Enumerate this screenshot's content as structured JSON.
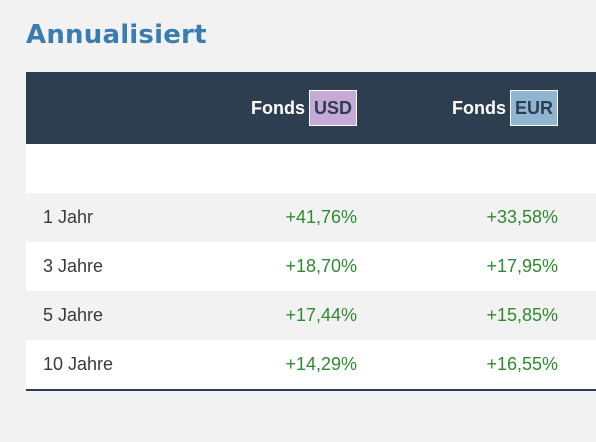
{
  "title": "Annualisiert",
  "header": {
    "col_usd_label": "Fonds",
    "col_usd_currency": "USD",
    "col_eur_label": "Fonds",
    "col_eur_currency": "EUR"
  },
  "rows": [
    {
      "period": "1 Jahr",
      "usd": "+41,76%",
      "eur": "+33,58%"
    },
    {
      "period": "3 Jahre",
      "usd": "+18,70%",
      "eur": "+17,95%"
    },
    {
      "period": "5 Jahre",
      "usd": "+17,44%",
      "eur": "+15,85%"
    },
    {
      "period": "10 Jahre",
      "usd": "+14,29%",
      "eur": "+16,55%"
    }
  ],
  "colors": {
    "title": "#3a7cb0",
    "header_bg": "#2d3e51",
    "positive": "#2f8a2f",
    "usd_badge": "#c7a9d7",
    "eur_badge": "#8fb5d1"
  }
}
